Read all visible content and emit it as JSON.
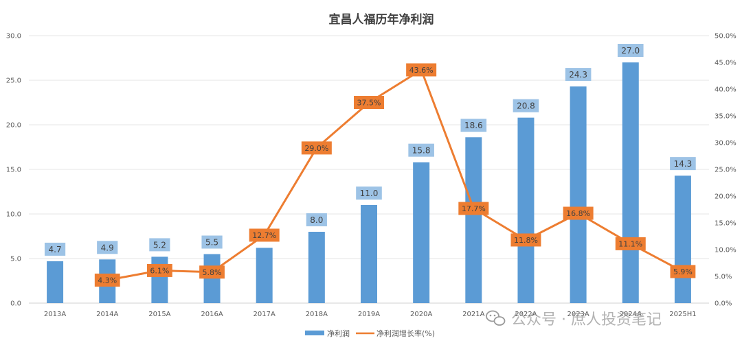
{
  "chart_data": {
    "type": "bar",
    "title": "宜昌人福历年净利润",
    "categories": [
      "2013A",
      "2014A",
      "2015A",
      "2016A",
      "2017A",
      "2018A",
      "2019A",
      "2020A",
      "2021A",
      "2022A",
      "2023A",
      "2024A",
      "2025H1"
    ],
    "series": [
      {
        "name": "净利润",
        "type": "bar",
        "axis": "left",
        "values": [
          4.7,
          4.9,
          5.2,
          5.5,
          6.2,
          8.0,
          11.0,
          15.8,
          18.6,
          20.8,
          24.3,
          27.0,
          14.3
        ],
        "labels": [
          "4.7",
          "4.9",
          "5.2",
          "5.5",
          "",
          "8.0",
          "11.0",
          "15.8",
          "18.6",
          "20.8",
          "24.3",
          "27.0",
          "14.3"
        ],
        "color": "#5b9bd5"
      },
      {
        "name": "净利润增长率(%)",
        "type": "line",
        "axis": "right",
        "values": [
          null,
          4.3,
          6.1,
          5.8,
          12.7,
          29.0,
          37.5,
          43.6,
          17.7,
          11.8,
          16.8,
          11.1,
          5.9
        ],
        "labels": [
          "",
          "4.3%",
          "6.1%",
          "5.8%",
          "12.7%",
          "29.0%",
          "37.5%",
          "43.6%",
          "17.7%",
          "11.8%",
          "16.8%",
          "11.1%",
          "5.9%"
        ],
        "color": "#ed7d31"
      }
    ],
    "y_left": {
      "min": 0,
      "max": 30,
      "step": 5,
      "ticks": [
        "0.0",
        "5.0",
        "10.0",
        "15.0",
        "20.0",
        "25.0",
        "30.0"
      ]
    },
    "y_right": {
      "min": 0,
      "max": 50,
      "step": 5,
      "ticks": [
        "0.0%",
        "5.0%",
        "10.0%",
        "15.0%",
        "20.0%",
        "25.0%",
        "30.0%",
        "35.0%",
        "40.0%",
        "45.0%",
        "50.0%"
      ]
    },
    "grid": true,
    "legend": "bottom",
    "bar_label_bg": "#9dc3e6",
    "watermark": "公众号 · 庶人投资笔记"
  }
}
